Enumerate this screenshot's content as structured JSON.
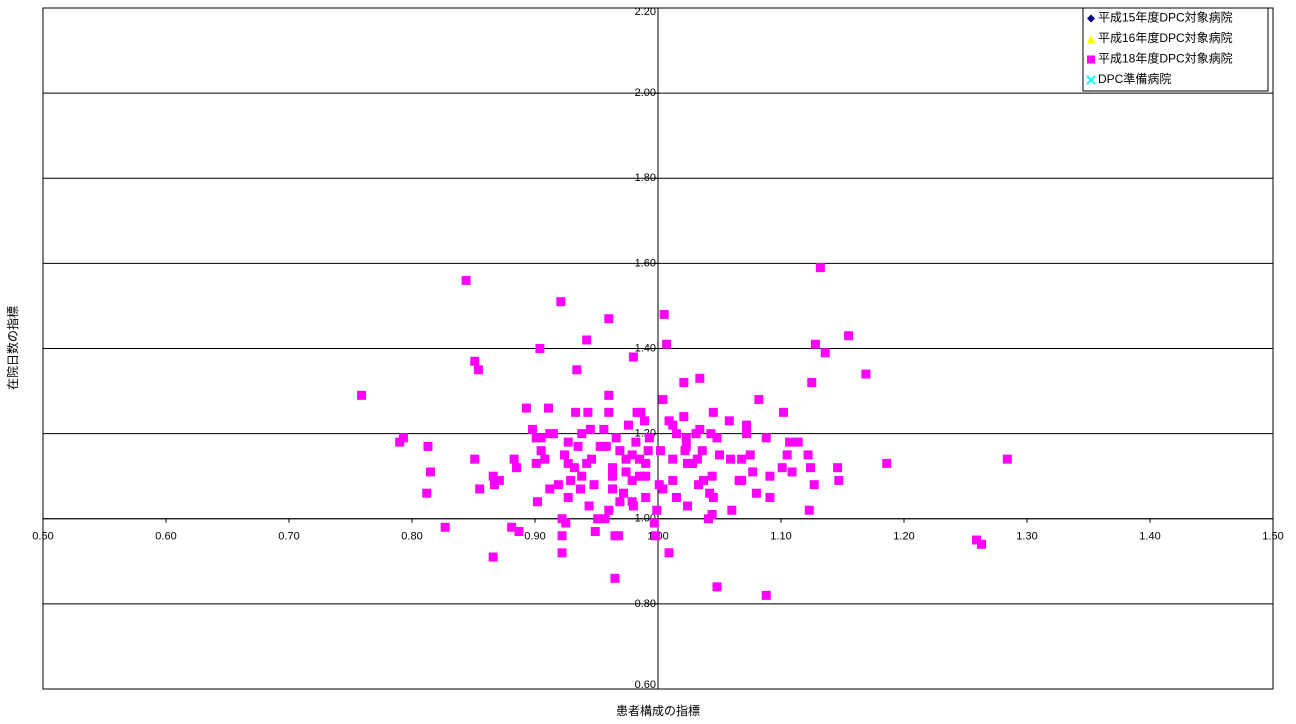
{
  "chart_data": {
    "type": "scatter",
    "x_label": "患者構成の指標",
    "y_label": "在院日数の指標",
    "xlim": [
      0.5,
      1.5
    ],
    "xticks": [
      {
        "value": 0.5,
        "label": "0.50"
      },
      {
        "value": 0.6,
        "label": "0.60"
      },
      {
        "value": 0.7,
        "label": "0.70"
      },
      {
        "value": 0.8,
        "label": "0.80"
      },
      {
        "value": 0.9,
        "label": "0.90"
      },
      {
        "value": 1.0,
        "label": "1.00"
      },
      {
        "value": 1.1,
        "label": "1.10"
      },
      {
        "value": 1.2,
        "label": "1.20"
      },
      {
        "value": 1.3,
        "label": "1.30"
      },
      {
        "value": 1.4,
        "label": "1.40"
      },
      {
        "value": 1.5,
        "label": "1.50"
      }
    ],
    "ylim": [
      0.6,
      2.2
    ],
    "yticks": [
      {
        "value": 0.6,
        "label": "0.60"
      },
      {
        "value": 0.8,
        "label": "0.80"
      },
      {
        "value": 1.0,
        "label": "1.00"
      },
      {
        "value": 1.2,
        "label": "1.20"
      },
      {
        "value": 1.4,
        "label": "1.40"
      },
      {
        "value": 1.6,
        "label": "1.60"
      },
      {
        "value": 1.8,
        "label": "1.80"
      },
      {
        "value": 2.0,
        "label": "2.00"
      },
      {
        "value": 2.2,
        "label": "2.20"
      }
    ],
    "axes_cross": {
      "x": 1.0,
      "y": 1.0
    },
    "grid": true,
    "legend": "top-right",
    "series": [
      {
        "name": "平成15年度DPC対象病院",
        "color": "#000080",
        "marker": "diamond",
        "x": [],
        "values": []
      },
      {
        "name": "平成16年度DPC対象病院",
        "color": "#ffff00",
        "marker": "triangle",
        "x": [],
        "values": []
      },
      {
        "name": "平成18年度DPC対象病院",
        "color": "#ff00ff",
        "marker": "square",
        "x": [
          0.844,
          0.759,
          1.132,
          1.155,
          1.169,
          1.128,
          1.136,
          1.125,
          0.921,
          0.96,
          1.005,
          1.007,
          0.904,
          0.942,
          0.851,
          0.854,
          0.934,
          0.98,
          1.021,
          1.034,
          0.96,
          1.004,
          1.082,
          0.893,
          0.911,
          0.933,
          0.943,
          0.96,
          0.983,
          0.986,
          1.045,
          1.102,
          1.058,
          1.072,
          0.898,
          0.945,
          0.938,
          0.912,
          0.915,
          0.901,
          0.905,
          0.956,
          0.966,
          0.976,
          0.989,
          0.993,
          1.009,
          1.012,
          1.015,
          1.021,
          1.023,
          1.031,
          1.034,
          1.043,
          1.048,
          1.072,
          1.088,
          1.107,
          1.114,
          1.122,
          0.79,
          0.793,
          0.813,
          0.851,
          0.883,
          0.815,
          0.812,
          0.827,
          0.855,
          0.866,
          0.871,
          0.867,
          0.885,
          0.881,
          0.887,
          0.866,
          0.902,
          0.912,
          0.919,
          0.922,
          0.922,
          0.922,
          0.925,
          0.927,
          0.924,
          0.927,
          0.932,
          0.938,
          0.942,
          0.946,
          0.948,
          0.944,
          0.951,
          0.949,
          0.957,
          0.96,
          0.963,
          0.963,
          0.963,
          0.965,
          0.965,
          0.969,
          0.974,
          0.979,
          0.979,
          0.98,
          0.985,
          0.99,
          0.992,
          0.997,
          0.998,
          0.999,
          1.001,
          1.004,
          1.009,
          1.012,
          1.012,
          1.015,
          1.022,
          1.024,
          1.024,
          1.028,
          1.033,
          1.037,
          1.041,
          1.042,
          1.044,
          1.045,
          1.044,
          1.048,
          1.06,
          1.066,
          1.068,
          1.075,
          1.077,
          1.08,
          1.088,
          1.091,
          1.091,
          1.101,
          1.109,
          1.123,
          1.124,
          1.127,
          1.146,
          1.147,
          1.186,
          1.259,
          1.263,
          1.284,
          0.901,
          0.905,
          0.908,
          0.927,
          0.935,
          0.953,
          0.958,
          0.969,
          0.979,
          0.982,
          0.985,
          0.99,
          1.002,
          1.023,
          1.036,
          1.05,
          1.059,
          0.974,
          0.972,
          0.937,
          0.929,
          0.968,
          0.99,
          1.032,
          1.068,
          1.105
        ],
        "values": [
          1.56,
          1.29,
          1.59,
          1.43,
          1.34,
          1.41,
          1.39,
          1.32,
          1.51,
          1.47,
          1.48,
          1.41,
          1.4,
          1.42,
          1.37,
          1.35,
          1.35,
          1.38,
          1.32,
          1.33,
          1.29,
          1.28,
          1.28,
          1.26,
          1.26,
          1.25,
          1.25,
          1.25,
          1.25,
          1.25,
          1.25,
          1.25,
          1.23,
          1.22,
          1.21,
          1.21,
          1.2,
          1.2,
          1.2,
          1.19,
          1.19,
          1.21,
          1.19,
          1.22,
          1.23,
          1.19,
          1.23,
          1.22,
          1.2,
          1.24,
          1.19,
          1.2,
          1.21,
          1.2,
          1.19,
          1.2,
          1.19,
          1.18,
          1.18,
          1.15,
          1.18,
          1.19,
          1.17,
          1.14,
          1.14,
          1.11,
          1.06,
          0.98,
          1.07,
          1.1,
          1.09,
          1.08,
          1.12,
          0.98,
          0.97,
          0.91,
          1.04,
          1.07,
          1.08,
          1.0,
          0.96,
          0.92,
          0.99,
          1.05,
          1.15,
          1.13,
          1.12,
          1.1,
          1.13,
          1.14,
          1.08,
          1.03,
          1.0,
          0.97,
          1.0,
          1.02,
          1.07,
          1.1,
          1.12,
          0.96,
          0.86,
          1.04,
          1.11,
          1.09,
          1.04,
          1.03,
          1.1,
          1.1,
          1.16,
          0.99,
          0.96,
          1.02,
          1.08,
          1.07,
          0.92,
          1.09,
          1.14,
          1.05,
          1.16,
          1.13,
          1.03,
          1.13,
          1.08,
          1.09,
          1.0,
          1.06,
          1.01,
          1.05,
          1.1,
          0.84,
          1.02,
          1.09,
          1.09,
          1.15,
          1.11,
          1.06,
          0.82,
          1.05,
          1.1,
          1.12,
          1.11,
          1.02,
          1.12,
          1.08,
          1.12,
          1.09,
          1.13,
          0.95,
          0.94,
          1.14,
          1.13,
          1.16,
          1.14,
          1.18,
          1.17,
          1.17,
          1.17,
          1.16,
          1.15,
          1.18,
          1.14,
          1.13,
          1.16,
          1.17,
          1.16,
          1.15,
          1.14,
          1.14,
          1.06,
          1.07,
          1.09,
          0.96,
          1.05,
          1.14,
          1.14,
          1.15
        ]
      },
      {
        "name": "DPC準備病院",
        "color": "#00ffff",
        "marker": "x",
        "x": [],
        "values": []
      }
    ]
  }
}
